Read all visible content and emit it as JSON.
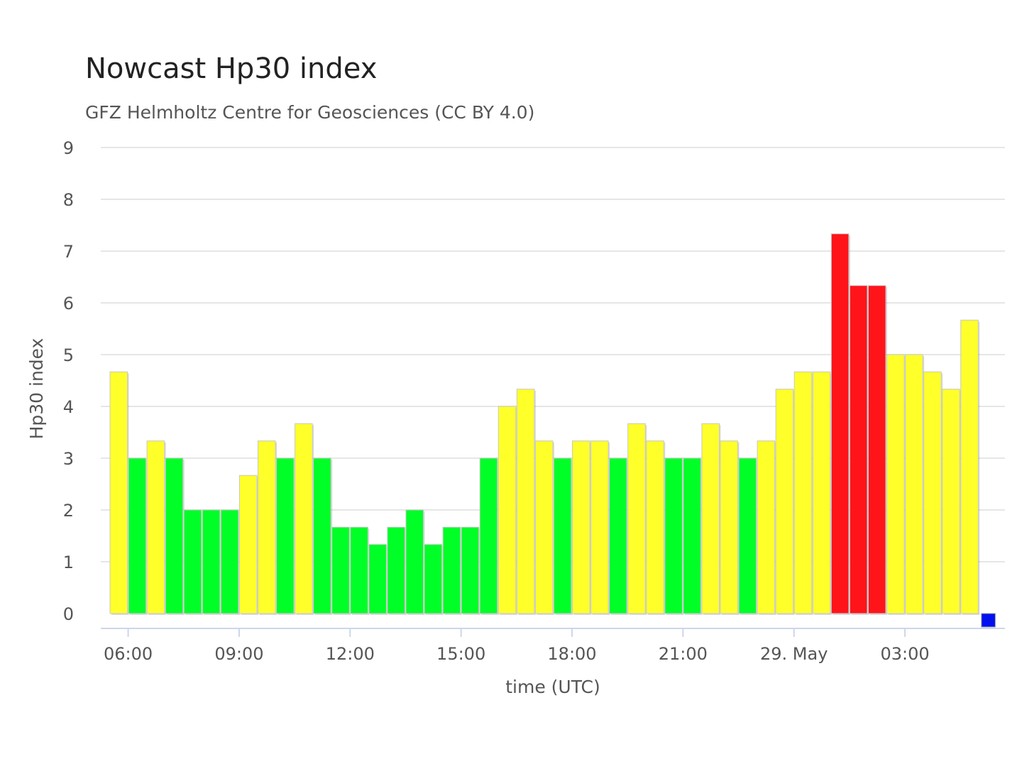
{
  "chart_data": {
    "type": "bar",
    "title": "Nowcast Hp30 index",
    "subtitle": "GFZ Helmholtz Centre for Geosciences (CC BY 4.0)",
    "xlabel": "time (UTC)",
    "ylabel": "Hp30 index",
    "ylim": [
      0,
      9
    ],
    "yticks": [
      0,
      1,
      2,
      3,
      4,
      5,
      6,
      7,
      8,
      9
    ],
    "grid": true,
    "start": "05:30",
    "interval_minutes": 30,
    "xticks": [
      {
        "label": "06:00",
        "at": "06:00"
      },
      {
        "label": "09:00",
        "at": "09:00"
      },
      {
        "label": "12:00",
        "at": "12:00"
      },
      {
        "label": "15:00",
        "at": "15:00"
      },
      {
        "label": "18:00",
        "at": "18:00"
      },
      {
        "label": "21:00",
        "at": "21:00"
      },
      {
        "label": "29. May",
        "at": "00:00"
      },
      {
        "label": "03:00",
        "at": "03:00"
      }
    ],
    "colors": {
      "green": "#00ff27",
      "yellow": "#ffff2a",
      "red": "#ff141a",
      "blue": "#0011ee"
    },
    "series": [
      {
        "values": [
          4.667,
          3.0,
          3.333,
          3.0,
          2.0,
          2.0,
          2.0,
          2.667,
          3.333,
          3.0,
          3.667,
          3.0,
          1.667,
          1.667,
          1.333,
          1.667,
          2.0,
          1.333,
          1.667,
          1.667,
          3.0,
          4.0,
          4.333,
          3.333,
          3.0,
          3.333,
          3.333,
          3.0,
          3.667,
          3.333,
          3.0,
          3.0,
          3.667,
          3.333,
          3.0,
          3.333,
          4.333,
          4.667,
          4.667,
          7.333,
          6.333,
          6.333,
          5.0,
          5.0,
          4.667,
          4.333,
          5.667,
          0.0
        ],
        "color_keys": [
          "yellow",
          "green",
          "yellow",
          "green",
          "green",
          "green",
          "green",
          "yellow",
          "yellow",
          "green",
          "yellow",
          "green",
          "green",
          "green",
          "green",
          "green",
          "green",
          "green",
          "green",
          "green",
          "green",
          "yellow",
          "yellow",
          "yellow",
          "green",
          "yellow",
          "yellow",
          "green",
          "yellow",
          "yellow",
          "green",
          "green",
          "yellow",
          "yellow",
          "green",
          "yellow",
          "yellow",
          "yellow",
          "yellow",
          "red",
          "red",
          "red",
          "yellow",
          "yellow",
          "yellow",
          "yellow",
          "yellow",
          "blue"
        ]
      }
    ]
  }
}
